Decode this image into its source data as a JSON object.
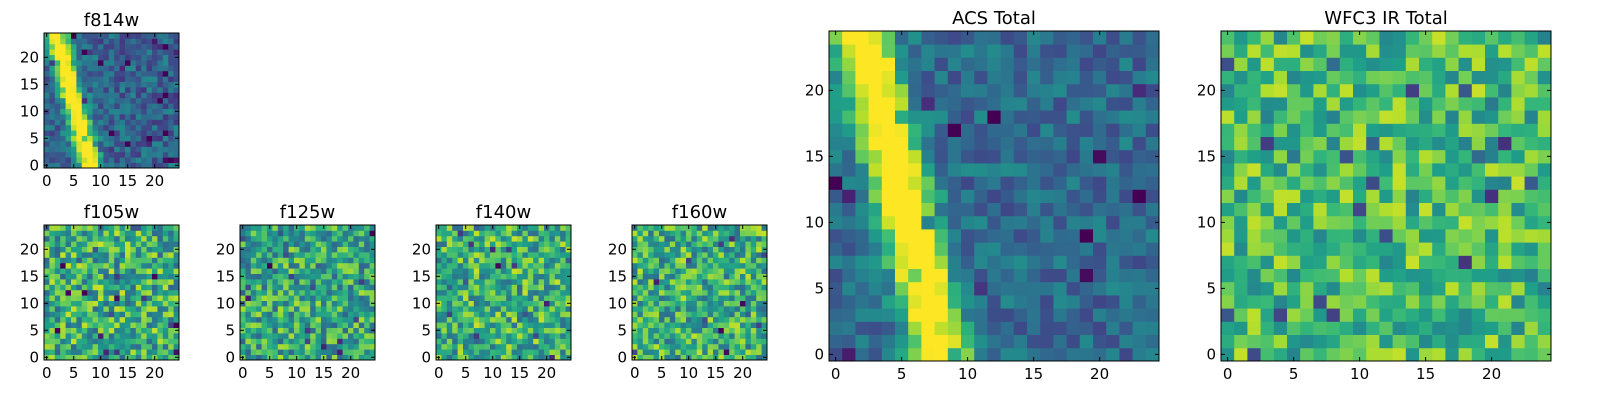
{
  "figure": {
    "description_colormap": "viridis",
    "colors": {
      "low": "#440154",
      "mid": "#21918c",
      "high": "#fde725"
    }
  },
  "chart_data": [
    {
      "id": "f814w",
      "type": "heatmap",
      "title": "f814w",
      "grid": "25x25",
      "xlim": [
        -0.5,
        24.5
      ],
      "ylim": [
        -0.5,
        24.5
      ],
      "xticks": [
        0,
        5,
        10,
        15,
        20
      ],
      "xtick_labels": [
        "0",
        "5",
        "10",
        "15",
        "20"
      ],
      "yticks": [
        0,
        5,
        10,
        15,
        20
      ],
      "ytick_labels": [
        "0",
        "5",
        "10",
        "15",
        "20"
      ],
      "pattern": {
        "kind": "diagonal-streak",
        "line_x_at_y0": 8,
        "slope": -0.26,
        "width": 1.4,
        "background": 0.32,
        "noise": 0.16
      }
    },
    {
      "id": "f105w",
      "type": "heatmap",
      "title": "f105w",
      "grid": "25x25",
      "xlim": [
        -0.5,
        24.5
      ],
      "ylim": [
        -0.5,
        24.5
      ],
      "xticks": [
        0,
        5,
        10,
        15,
        20
      ],
      "xtick_labels": [
        "0",
        "5",
        "10",
        "15",
        "20"
      ],
      "yticks": [
        0,
        5,
        10,
        15,
        20
      ],
      "ytick_labels": [
        "0",
        "5",
        "10",
        "15",
        "20"
      ],
      "pattern": {
        "kind": "noise",
        "background": 0.62,
        "noise": 0.3
      }
    },
    {
      "id": "f125w",
      "type": "heatmap",
      "title": "f125w",
      "grid": "25x25",
      "xlim": [
        -0.5,
        24.5
      ],
      "ylim": [
        -0.5,
        24.5
      ],
      "xticks": [
        0,
        5,
        10,
        15,
        20
      ],
      "xtick_labels": [
        "0",
        "5",
        "10",
        "15",
        "20"
      ],
      "yticks": [
        0,
        5,
        10,
        15,
        20
      ],
      "ytick_labels": [
        "0",
        "5",
        "10",
        "15",
        "20"
      ],
      "pattern": {
        "kind": "noise",
        "background": 0.6,
        "noise": 0.28
      }
    },
    {
      "id": "f140w",
      "type": "heatmap",
      "title": "f140w",
      "grid": "25x25",
      "xlim": [
        -0.5,
        24.5
      ],
      "ylim": [
        -0.5,
        24.5
      ],
      "xticks": [
        0,
        5,
        10,
        15,
        20
      ],
      "xtick_labels": [
        "0",
        "5",
        "10",
        "15",
        "20"
      ],
      "yticks": [
        0,
        5,
        10,
        15,
        20
      ],
      "ytick_labels": [
        "0",
        "5",
        "10",
        "15",
        "20"
      ],
      "pattern": {
        "kind": "noise",
        "background": 0.64,
        "noise": 0.28
      }
    },
    {
      "id": "f160w",
      "type": "heatmap",
      "title": "f160w",
      "grid": "25x25",
      "xlim": [
        -0.5,
        24.5
      ],
      "ylim": [
        -0.5,
        24.5
      ],
      "xticks": [
        0,
        5,
        10,
        15,
        20
      ],
      "xtick_labels": [
        "0",
        "5",
        "10",
        "15",
        "20"
      ],
      "yticks": [
        0,
        5,
        10,
        15,
        20
      ],
      "ytick_labels": [
        "0",
        "5",
        "10",
        "15",
        "20"
      ],
      "pattern": {
        "kind": "noise",
        "background": 0.63,
        "noise": 0.28
      }
    },
    {
      "id": "acs-total",
      "type": "heatmap",
      "title": "ACS Total",
      "grid": "25x25",
      "xlim": [
        -0.5,
        24.5
      ],
      "ylim": [
        -0.5,
        24.5
      ],
      "xticks": [
        0,
        5,
        10,
        15,
        20
      ],
      "xtick_labels": [
        "0",
        "5",
        "10",
        "15",
        "20"
      ],
      "yticks": [
        0,
        5,
        10,
        15,
        20
      ],
      "ytick_labels": [
        "0",
        "5",
        "10",
        "15",
        "20"
      ],
      "pattern": {
        "kind": "diagonal-streak",
        "line_x_at_y0": 8,
        "slope": -0.25,
        "width": 1.5,
        "background": 0.35,
        "noise": 0.14
      }
    },
    {
      "id": "wfc3-ir-total",
      "type": "heatmap",
      "title": "WFC3 IR Total",
      "grid": "25x25",
      "xlim": [
        -0.5,
        24.5
      ],
      "ylim": [
        -0.5,
        24.5
      ],
      "xticks": [
        0,
        5,
        10,
        15,
        20
      ],
      "xtick_labels": [
        "0",
        "5",
        "10",
        "15",
        "20"
      ],
      "yticks": [
        0,
        5,
        10,
        15,
        20
      ],
      "ytick_labels": [
        "0",
        "5",
        "10",
        "15",
        "20"
      ],
      "pattern": {
        "kind": "noise",
        "background": 0.68,
        "noise": 0.24
      }
    }
  ]
}
